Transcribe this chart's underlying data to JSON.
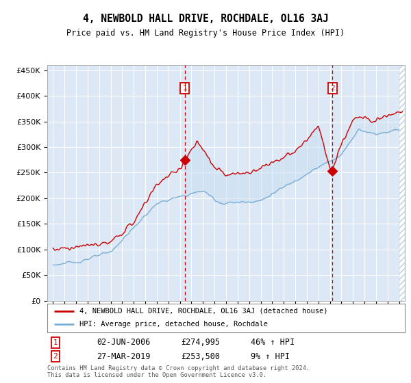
{
  "title": "4, NEWBOLD HALL DRIVE, ROCHDALE, OL16 3AJ",
  "subtitle": "Price paid vs. HM Land Registry's House Price Index (HPI)",
  "hpi_legend": "HPI: Average price, detached house, Rochdale",
  "property_legend": "4, NEWBOLD HALL DRIVE, ROCHDALE, OL16 3AJ (detached house)",
  "annotation1_date": "02-JUN-2006",
  "annotation1_price": "£274,995",
  "annotation1_hpi": "46% ↑ HPI",
  "annotation2_date": "27-MAR-2019",
  "annotation2_price": "£253,500",
  "annotation2_hpi": "9% ↑ HPI",
  "sale1_year": 2006.42,
  "sale1_price": 274995,
  "sale2_year": 2019.23,
  "sale2_price": 253500,
  "plot_bg": "#dce8f5",
  "line_color_hpi": "#7aaed4",
  "line_color_property": "#cc0000",
  "marker_color": "#cc0000",
  "dashed_line_color": "#cc0000",
  "footnote": "Contains HM Land Registry data © Crown copyright and database right 2024.\nThis data is licensed under the Open Government Licence v3.0.",
  "ylim_min": 0,
  "ylim_max": 460000,
  "xlim_min": 1994.5,
  "xlim_max": 2025.5
}
